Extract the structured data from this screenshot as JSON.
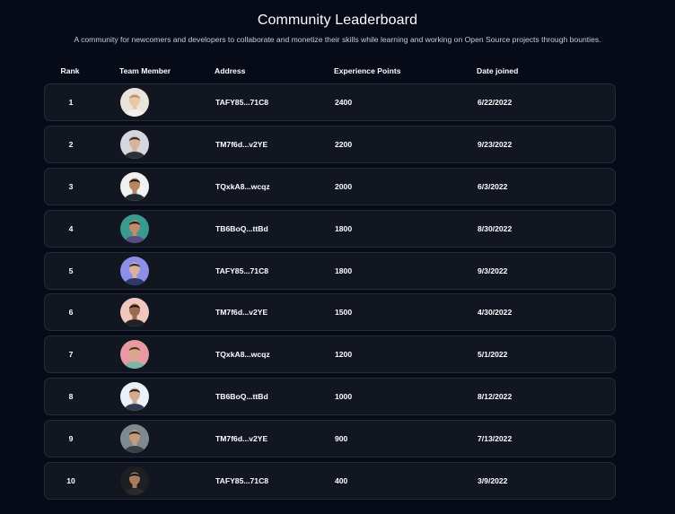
{
  "title": "Community Leaderboard",
  "subtitle": "A community for newcomers and developers to collaborate and monetize their skills while learning and working on Open Source projects through bounties.",
  "columns": {
    "rank": "Rank",
    "member": "Team Member",
    "address": "Address",
    "xp": "Experience Points",
    "date": "Date joined"
  },
  "rows": [
    {
      "rank": "1",
      "address": "TAFY85...71C8",
      "xp": "2400",
      "date": "6/22/2022",
      "avatar": {
        "bg": "#e9e3dc",
        "hair": "#b98a5e",
        "skin": "#e9c7a9",
        "shirt": "#f4f1ec"
      }
    },
    {
      "rank": "2",
      "address": "TM7f6d...v2YE",
      "xp": "2200",
      "date": "9/23/2022",
      "avatar": {
        "bg": "#d5d7dc",
        "hair": "#2b2b2f",
        "skin": "#d7b39b",
        "shirt": "#2d2f36"
      }
    },
    {
      "rank": "3",
      "address": "TQxkA8...wcqz",
      "xp": "2000",
      "date": "6/3/2022",
      "avatar": {
        "bg": "#f1f1f1",
        "hair": "#1c1c1c",
        "skin": "#b98561",
        "shirt": "#1f2a33"
      }
    },
    {
      "rank": "4",
      "address": "TB6BoQ...ttBd",
      "xp": "1800",
      "date": "8/30/2022",
      "avatar": {
        "bg": "#3a9a8f",
        "hair": "#1b1b1e",
        "skin": "#c08a6b",
        "shirt": "#5a4c7e"
      }
    },
    {
      "rank": "5",
      "address": "TAFY85...71C8",
      "xp": "1800",
      "date": "9/3/2022",
      "avatar": {
        "bg": "#8c8ee8",
        "hair": "#2a2a30",
        "skin": "#d8b29c",
        "shirt": "#2c3a6b"
      }
    },
    {
      "rank": "6",
      "address": "TM7f6d...v2YE",
      "xp": "1500",
      "date": "4/30/2022",
      "avatar": {
        "bg": "#f0c8c0",
        "hair": "#1a1414",
        "skin": "#9c6b4f",
        "shirt": "#222222"
      }
    },
    {
      "rank": "7",
      "address": "TQxkA8...wcqz",
      "xp": "1200",
      "date": "5/1/2022",
      "avatar": {
        "bg": "#e79aa1",
        "hair": "#4a2f24",
        "skin": "#d9a889",
        "shirt": "#7bb7a3"
      }
    },
    {
      "rank": "8",
      "address": "TB6BoQ...ttBd",
      "xp": "1000",
      "date": "8/12/2022",
      "avatar": {
        "bg": "#eaf2f7",
        "hair": "#2a2320",
        "skin": "#d4ab8e",
        "shirt": "#2e3c52"
      }
    },
    {
      "rank": "9",
      "address": "TM7f6d...v2YE",
      "xp": "900",
      "date": "7/13/2022",
      "avatar": {
        "bg": "#7f8a90",
        "hair": "#23211f",
        "skin": "#c39a7c",
        "shirt": "#39424a"
      }
    },
    {
      "rank": "10",
      "address": "TAFY85...71C8",
      "xp": "400",
      "date": "3/9/2022",
      "avatar": {
        "bg": "#1e1f22",
        "hair": "#141414",
        "skin": "#a87b5f",
        "shirt": "#2a2a2a"
      }
    }
  ]
}
